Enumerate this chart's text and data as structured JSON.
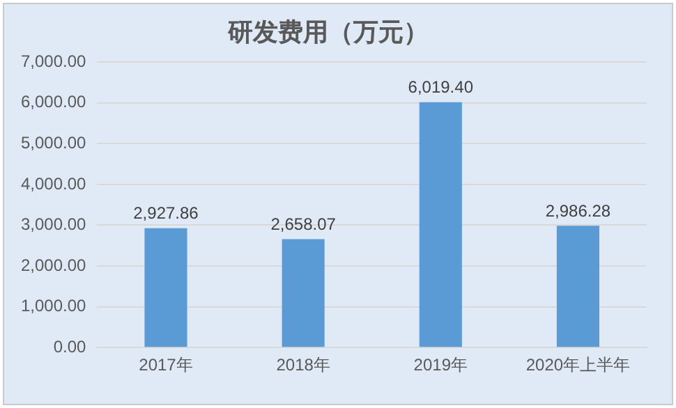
{
  "chart_data": {
    "type": "bar",
    "title": "研发费用（万元）",
    "categories": [
      "2017年",
      "2018年",
      "2019年",
      "2020年上半年"
    ],
    "values": [
      2927.86,
      2658.07,
      6019.4,
      2986.28
    ],
    "value_labels": [
      "2,927.86",
      "2,658.07",
      "6,019.40",
      "2,986.28"
    ],
    "color": "#5b9bd5",
    "ylim": [
      0,
      7000
    ],
    "yticks": [
      {
        "value": 0,
        "label": "0.00"
      },
      {
        "value": 1000,
        "label": "1,000.00"
      },
      {
        "value": 2000,
        "label": "2,000.00"
      },
      {
        "value": 3000,
        "label": "3,000.00"
      },
      {
        "value": 4000,
        "label": "4,000.00"
      },
      {
        "value": 5000,
        "label": "5,000.00"
      },
      {
        "value": 6000,
        "label": "6,000.00"
      },
      {
        "value": 7000,
        "label": "7,000.00"
      }
    ],
    "grid": "y"
  }
}
